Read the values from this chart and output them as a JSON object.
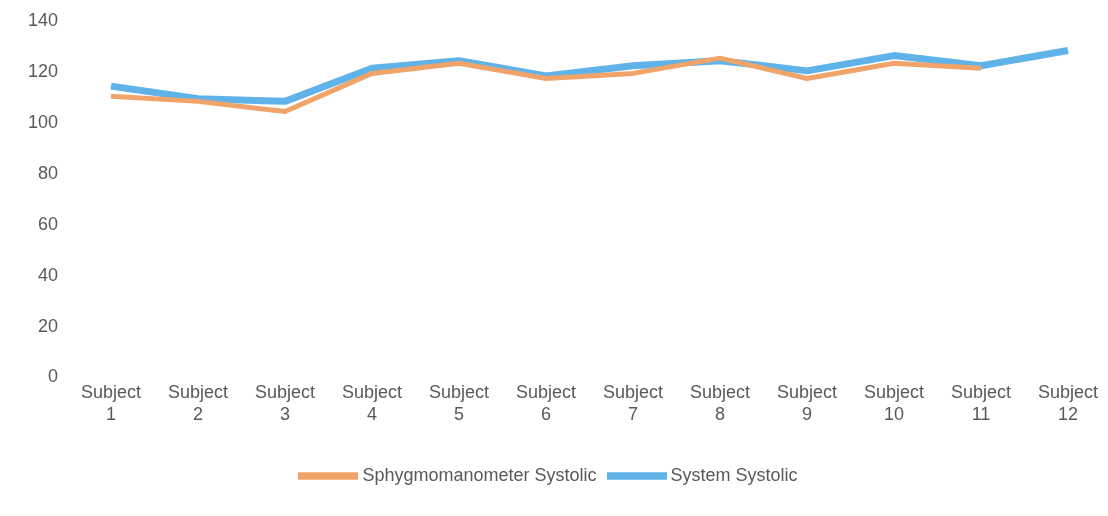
{
  "chart_data": {
    "type": "line",
    "categories": [
      "Subject 1",
      "Subject 2",
      "Subject 3",
      "Subject 4",
      "Subject 5",
      "Subject 6",
      "Subject 7",
      "Subject 8",
      "Subject 9",
      "Subject 10",
      "Subject 11",
      "Subject 12"
    ],
    "series": [
      {
        "name": "System Systolic",
        "color": "#5fb3e8",
        "values": [
          114,
          109,
          108,
          121,
          124,
          118,
          122,
          124,
          120,
          126,
          122,
          128
        ]
      },
      {
        "name": "Sphygmomanometer Systolic",
        "color": "#f0a46a",
        "values": [
          110,
          108,
          104,
          119,
          123,
          117,
          119,
          125,
          117,
          123,
          121,
          null
        ]
      }
    ],
    "ylim": [
      0,
      140
    ],
    "yticks": [
      0,
      20,
      40,
      60,
      80,
      100,
      120,
      140
    ],
    "grid": false,
    "legend": "bottom",
    "marker": "none",
    "line_style": "solid"
  }
}
